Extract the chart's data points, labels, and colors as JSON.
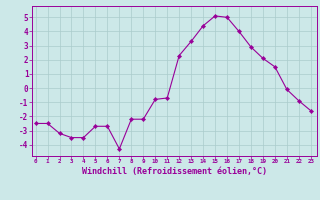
{
  "xlabel": "Windchill (Refroidissement éolien,°C)",
  "hours": [
    0,
    1,
    2,
    3,
    4,
    5,
    6,
    7,
    8,
    9,
    10,
    11,
    12,
    13,
    14,
    15,
    16,
    17,
    18,
    19,
    20,
    21,
    22,
    23
  ],
  "values": [
    -2.5,
    -2.5,
    -3.2,
    -3.5,
    -3.5,
    -2.7,
    -2.7,
    -4.3,
    -2.2,
    -2.2,
    -0.8,
    -0.7,
    2.3,
    3.3,
    4.4,
    5.1,
    5.0,
    4.0,
    2.9,
    2.1,
    1.5,
    -0.1,
    -0.9,
    -1.6
  ],
  "dense_x": null,
  "line_color": "#990099",
  "marker_color": "#990099",
  "bg_color": "#cce8e8",
  "grid_color": "#aacccc",
  "ylim": [
    -4.8,
    5.8
  ],
  "yticks": [
    -4,
    -3,
    -2,
    -1,
    0,
    1,
    2,
    3,
    4,
    5
  ],
  "xlim": [
    -0.3,
    23.5
  ]
}
